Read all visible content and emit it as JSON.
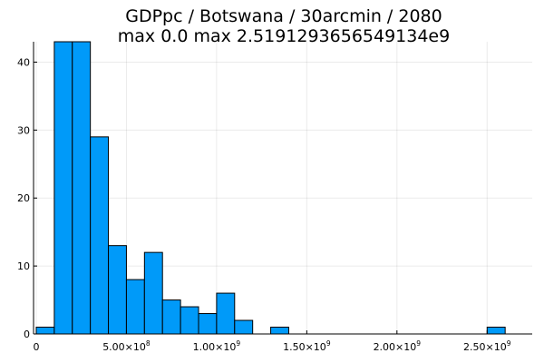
{
  "chart_data": {
    "type": "bar",
    "title": "GDPpc / Botswana / 30arcmin / 2080",
    "subtitle": "max 0.0  max 2.5191293656549134e9",
    "xlabel": "",
    "ylabel": "",
    "bar_color": "#009af9",
    "grid": true,
    "legend": "none",
    "xlim": [
      -15000000,
      2750000000
    ],
    "ylim": [
      0,
      43
    ],
    "bin_width": 100000000,
    "bins": [
      {
        "x0": 0,
        "x1": 100000000,
        "count": 1
      },
      {
        "x0": 100000000,
        "x1": 200000000,
        "count": 43
      },
      {
        "x0": 200000000,
        "x1": 300000000,
        "count": 43
      },
      {
        "x0": 300000000,
        "x1": 400000000,
        "count": 29
      },
      {
        "x0": 400000000,
        "x1": 500000000,
        "count": 13
      },
      {
        "x0": 500000000,
        "x1": 600000000,
        "count": 8
      },
      {
        "x0": 600000000,
        "x1": 700000000,
        "count": 12
      },
      {
        "x0": 700000000,
        "x1": 800000000,
        "count": 5
      },
      {
        "x0": 800000000,
        "x1": 900000000,
        "count": 4
      },
      {
        "x0": 900000000,
        "x1": 1000000000,
        "count": 3
      },
      {
        "x0": 1000000000,
        "x1": 1100000000,
        "count": 6
      },
      {
        "x0": 1100000000,
        "x1": 1200000000,
        "count": 2
      },
      {
        "x0": 1300000000,
        "x1": 1400000000,
        "count": 1
      },
      {
        "x0": 2500000000,
        "x1": 2600000000,
        "count": 1
      }
    ],
    "x_ticks": [
      {
        "value": 0,
        "mantissa": "0",
        "exponent": ""
      },
      {
        "value": 500000000,
        "mantissa": "5.00×10",
        "exponent": "8"
      },
      {
        "value": 1000000000,
        "mantissa": "1.00×10",
        "exponent": "9"
      },
      {
        "value": 1500000000,
        "mantissa": "1.50×10",
        "exponent": "9"
      },
      {
        "value": 2000000000,
        "mantissa": "2.00×10",
        "exponent": "9"
      },
      {
        "value": 2500000000,
        "mantissa": "2.50×10",
        "exponent": "9"
      }
    ],
    "y_ticks": [
      {
        "value": 0,
        "label": "0"
      },
      {
        "value": 10,
        "label": "10"
      },
      {
        "value": 20,
        "label": "20"
      },
      {
        "value": 30,
        "label": "30"
      },
      {
        "value": 40,
        "label": "40"
      }
    ]
  }
}
